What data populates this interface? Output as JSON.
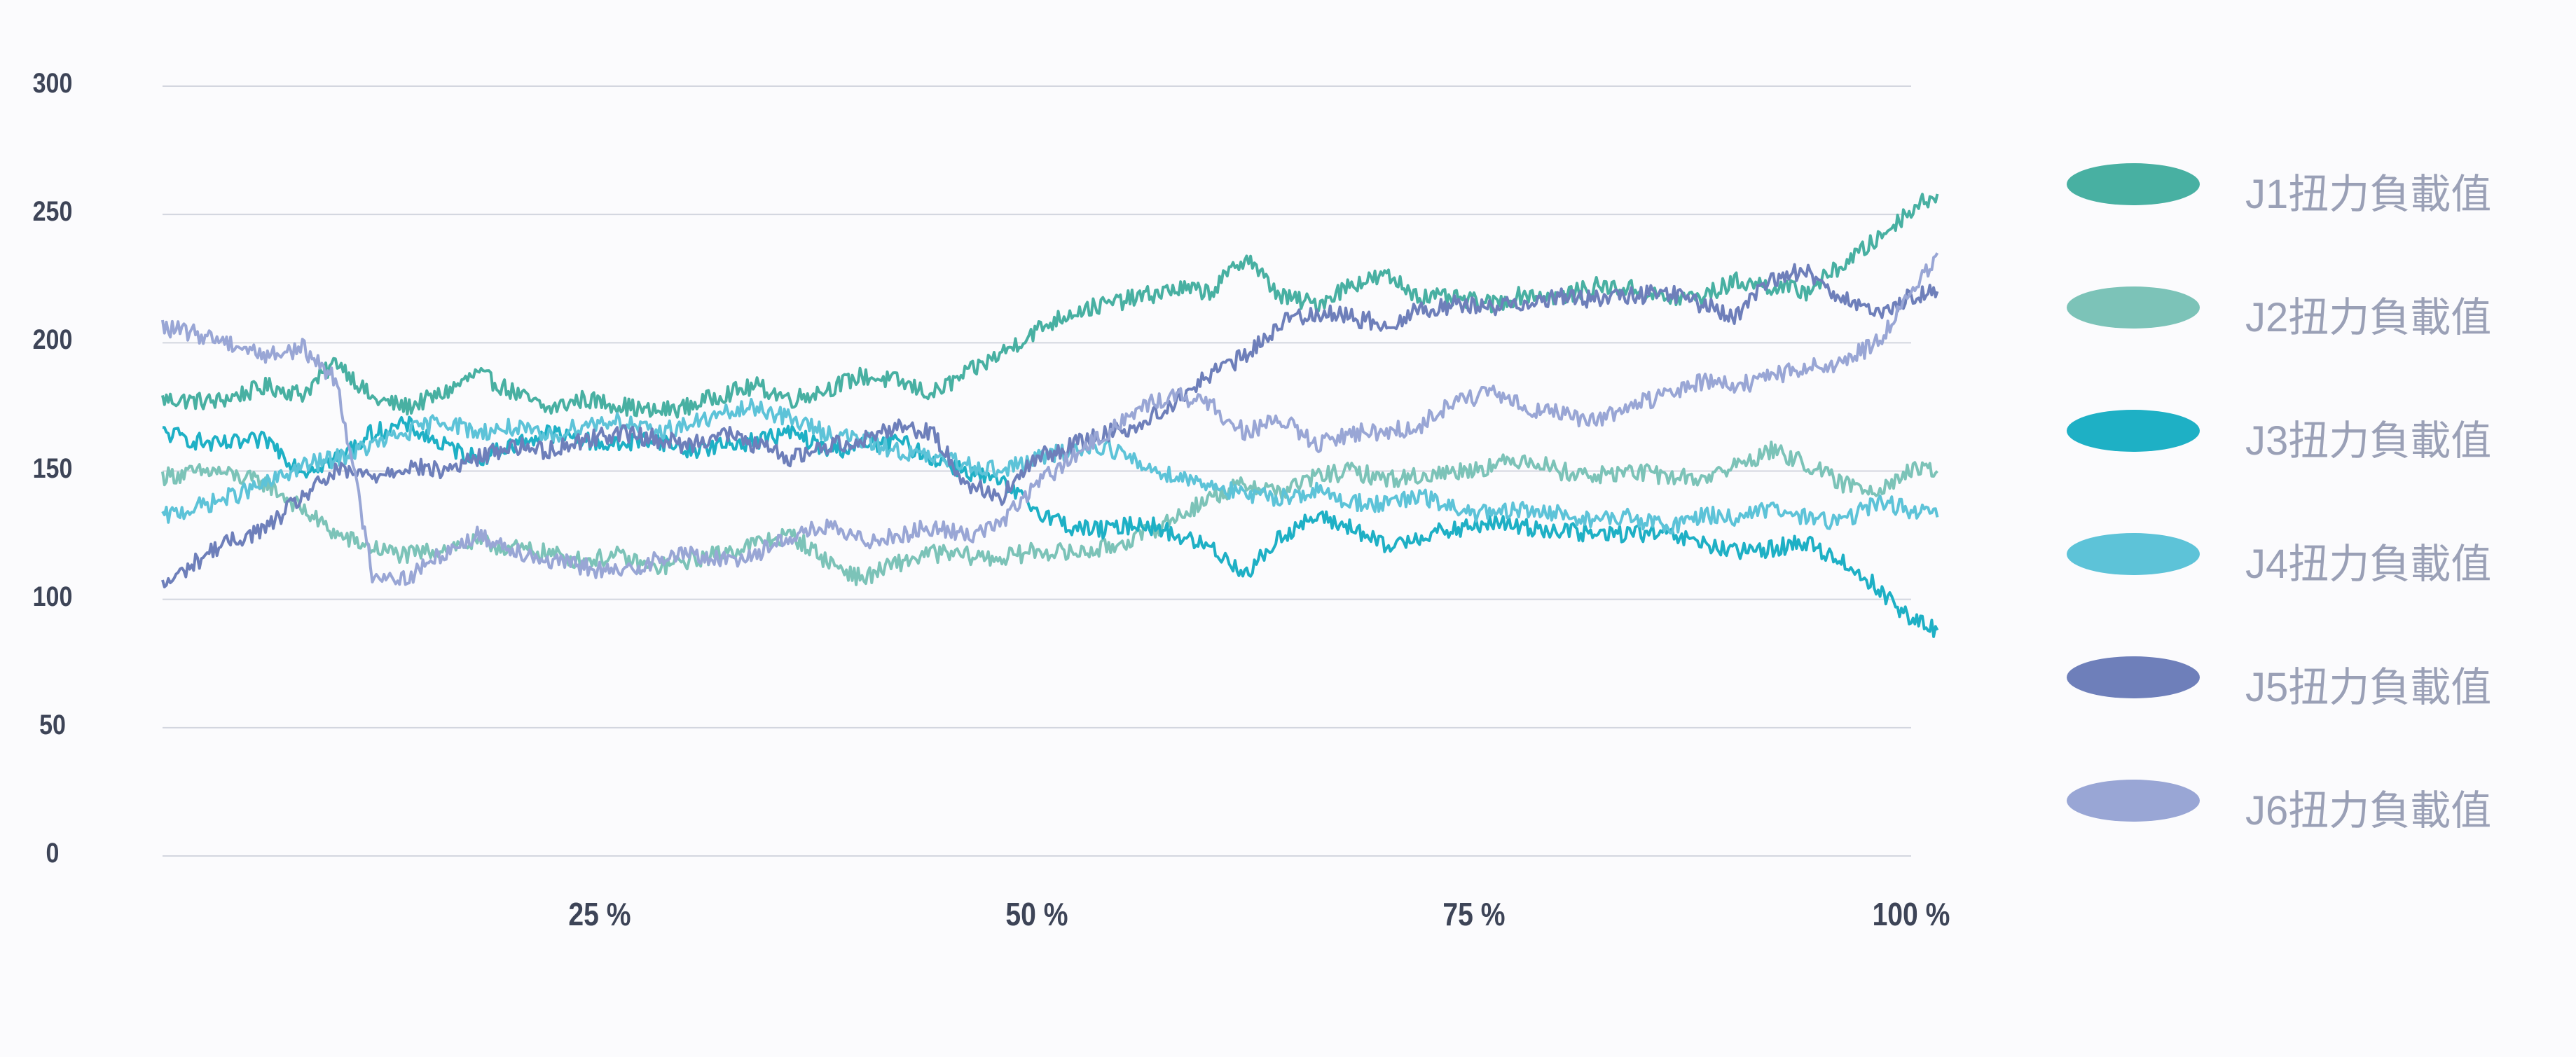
{
  "chart_data": {
    "type": "line",
    "y_ticks": [
      "0",
      "50",
      "100",
      "150",
      "200",
      "250",
      "300"
    ],
    "x_ticks": [
      "25 %",
      "50 %",
      "75 %",
      "100 %"
    ],
    "ylim": [
      0,
      300
    ],
    "xlim": [
      0,
      100
    ],
    "grid": "horizontal",
    "legend_position": "right",
    "series": [
      {
        "name": "J1扭力負載值",
        "color": "#48b0a2",
        "x": [
          0,
          3,
          6,
          8,
          10,
          12,
          14,
          16,
          18,
          20,
          22,
          24,
          26,
          28,
          30,
          32,
          34,
          36,
          38,
          40,
          42,
          44,
          46,
          48,
          50,
          52,
          54,
          56,
          58,
          60,
          62,
          63,
          64,
          66,
          68,
          70,
          72,
          74,
          76,
          78,
          80,
          82,
          84,
          86,
          88,
          90,
          92,
          94,
          96,
          98,
          100,
          101.5
        ],
        "y": [
          178,
          177,
          183,
          180,
          193,
          178,
          175,
          180,
          188,
          181,
          174,
          178,
          176,
          173,
          175,
          180,
          183,
          178,
          182,
          187,
          185,
          180,
          188,
          196,
          205,
          212,
          215,
          218,
          221,
          220,
          234,
          225,
          218,
          215,
          223,
          226,
          218,
          217,
          215,
          219,
          218,
          222,
          221,
          217,
          218,
          224,
          222,
          220,
          230,
          240,
          252,
          258
        ]
      },
      {
        "name": "J2扭力負載值",
        "color": "#7cc3b8",
        "x": [
          0,
          3,
          6,
          8,
          10,
          12,
          14,
          16,
          18,
          20,
          22,
          24,
          26,
          28,
          30,
          32,
          34,
          36,
          38,
          40,
          42,
          44,
          46,
          48,
          50,
          52,
          54,
          56,
          58,
          60,
          62,
          64,
          66,
          68,
          70,
          72,
          74,
          76,
          78,
          80,
          82,
          84,
          86,
          88,
          90,
          92,
          94,
          96,
          98,
          100,
          101.5
        ],
        "y": [
          148,
          150,
          145,
          135,
          125,
          120,
          117,
          120,
          122,
          120,
          118,
          115,
          117,
          112,
          115,
          118,
          122,
          125,
          115,
          108,
          114,
          118,
          117,
          116,
          119,
          118,
          120,
          125,
          132,
          140,
          145,
          142,
          148,
          150,
          147,
          148,
          150,
          152,
          155,
          150,
          148,
          150,
          148,
          147,
          152,
          158,
          153,
          145,
          143,
          150,
          150
        ]
      },
      {
        "name": "J3扭力負載值",
        "color": "#1eb0c5",
        "x": [
          0,
          3,
          6,
          8,
          10,
          12,
          14,
          16,
          18,
          20,
          22,
          24,
          26,
          28,
          30,
          32,
          34,
          36,
          38,
          40,
          42,
          44,
          46,
          48,
          50,
          52,
          54,
          56,
          58,
          60,
          62,
          64,
          66,
          68,
          70,
          72,
          74,
          76,
          78,
          80,
          82,
          84,
          86,
          88,
          90,
          92,
          94,
          96,
          98,
          100,
          101.5
        ],
        "y": [
          165,
          160,
          162,
          150,
          155,
          165,
          168,
          160,
          155,
          160,
          165,
          162,
          160,
          163,
          158,
          160,
          162,
          165,
          158,
          160,
          162,
          155,
          150,
          145,
          135,
          128,
          127,
          130,
          125,
          120,
          110,
          125,
          132,
          128,
          120,
          125,
          127,
          130,
          128,
          127,
          125,
          126,
          125,
          122,
          118,
          120,
          122,
          115,
          105,
          92,
          88
        ]
      },
      {
        "name": "J4扭力負載值",
        "color": "#5dc3d8",
        "x": [
          0,
          3,
          6,
          8,
          10,
          12,
          14,
          16,
          18,
          20,
          22,
          24,
          26,
          28,
          30,
          32,
          34,
          36,
          38,
          40,
          42,
          44,
          46,
          48,
          50,
          52,
          54,
          56,
          58,
          60,
          62,
          64,
          66,
          68,
          70,
          72,
          74,
          76,
          78,
          80,
          82,
          84,
          86,
          88,
          90,
          92,
          94,
          96,
          98,
          100,
          101.5
        ],
        "y": [
          132,
          138,
          145,
          152,
          155,
          160,
          165,
          170,
          165,
          167,
          163,
          168,
          170,
          165,
          168,
          172,
          175,
          170,
          165,
          162,
          158,
          155,
          153,
          150,
          155,
          158,
          160,
          152,
          148,
          145,
          140,
          140,
          142,
          138,
          137,
          140,
          135,
          133,
          135,
          133,
          131,
          132,
          128,
          133,
          132,
          135,
          132,
          130,
          138,
          135,
          132
        ]
      },
      {
        "name": "J5扭力負載值",
        "color": "#6e7fba",
        "x": [
          0,
          3,
          6,
          8,
          10,
          12,
          14,
          16,
          18,
          20,
          22,
          24,
          26,
          28,
          30,
          32,
          34,
          36,
          38,
          40,
          42,
          44,
          46,
          48,
          50,
          52,
          54,
          56,
          58,
          60,
          62,
          64,
          66,
          68,
          70,
          72,
          74,
          76,
          78,
          80,
          82,
          84,
          86,
          88,
          90,
          92,
          94,
          96,
          98,
          100,
          101.5
        ],
        "y": [
          105,
          120,
          128,
          140,
          150,
          148,
          152,
          150,
          155,
          160,
          158,
          162,
          165,
          163,
          160,
          165,
          160,
          155,
          160,
          162,
          168,
          165,
          145,
          140,
          155,
          160,
          165,
          168,
          178,
          188,
          195,
          208,
          212,
          210,
          207,
          213,
          215,
          214,
          216,
          218,
          217,
          218,
          220,
          215,
          210,
          225,
          228,
          218,
          210,
          218,
          220
        ]
      },
      {
        "name": "J6扭力負載值",
        "color": "#99a6d5",
        "x": [
          0,
          3,
          6,
          8,
          10,
          12,
          14,
          16,
          18,
          20,
          22,
          24,
          26,
          28,
          30,
          32,
          34,
          36,
          38,
          40,
          42,
          44,
          46,
          48,
          50,
          52,
          54,
          56,
          58,
          60,
          62,
          64,
          66,
          68,
          70,
          72,
          74,
          76,
          78,
          80,
          82,
          84,
          86,
          88,
          90,
          92,
          94,
          96,
          98,
          100,
          101.5
        ],
        "y": [
          206,
          202,
          195,
          198,
          185,
          110,
          108,
          118,
          125,
          120,
          115,
          113,
          110,
          115,
          118,
          115,
          118,
          125,
          128,
          123,
          125,
          128,
          125,
          130,
          145,
          155,
          165,
          175,
          180,
          175,
          165,
          170,
          160,
          165,
          165,
          168,
          178,
          180,
          175,
          172,
          170,
          175,
          180,
          185,
          183,
          187,
          190,
          192,
          200,
          218,
          235
        ]
      }
    ]
  }
}
